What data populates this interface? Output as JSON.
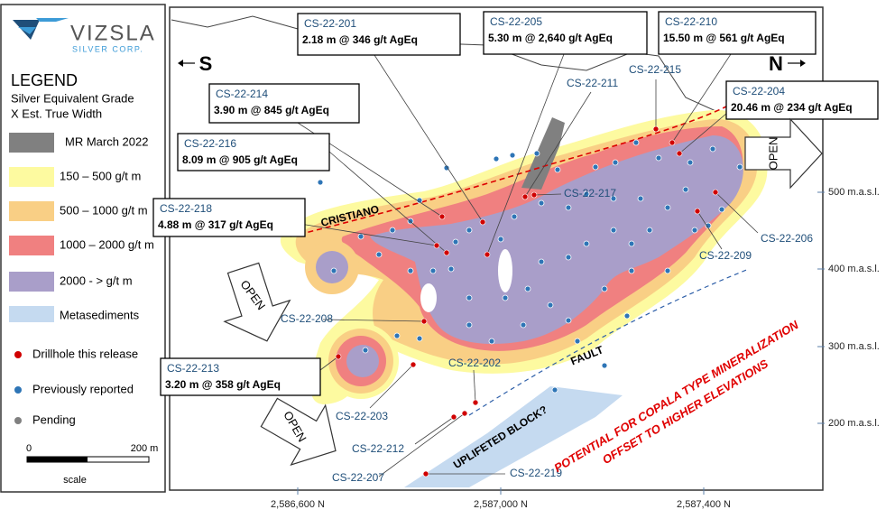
{
  "logo": {
    "name": "VIZSLA",
    "tagline": "SILVER CORP."
  },
  "legend": {
    "title": "LEGEND",
    "subtitle": [
      "Silver Equivalent Grade",
      "X Est. True Width"
    ],
    "zones": [
      "MR March 2022",
      "150 – 500 g/t m",
      "500 – 1000 g/t m",
      "1000 – 2000 g/t m",
      "2000 - > g/t m",
      "Metasediments"
    ],
    "symbols": [
      "Drillhole this release",
      "Previously reported",
      "Pending"
    ],
    "scale": {
      "start": "0",
      "end": "200 m",
      "label": "scale"
    }
  },
  "compass": {
    "south": "S",
    "north": "N"
  },
  "callouts": [
    {
      "hole": "CS-22-201",
      "intercept": "2.18 m @ 346 g/t AgEq"
    },
    {
      "hole": "CS-22-205",
      "intercept": "5.30 m @ 2,640 g/t AgEq"
    },
    {
      "hole": "CS-22-210",
      "intercept": "15.50 m @ 561 g/t AgEq"
    },
    {
      "hole": "CS-22-214",
      "intercept": "3.90 m @ 845 g/t AgEq"
    },
    {
      "hole": "CS-22-204",
      "intercept": "20.46 m @ 234 g/t AgEq"
    },
    {
      "hole": "CS-22-216",
      "intercept": "8.09 m @ 905 g/t AgEq"
    },
    {
      "hole": "CS-22-218",
      "intercept": "4.88 m @ 317 g/t AgEq"
    },
    {
      "hole": "CS-22-213",
      "intercept": "3.20 m @ 358 g/t AgEq"
    }
  ],
  "hole_labels": [
    "CS-22-215",
    "CS-22-211",
    "CS-22-217",
    "CS-22-206",
    "CS-22-209",
    "CS-22-208",
    "CS-22-202",
    "CS-22-203",
    "CS-22-212",
    "CS-22-207",
    "CS-22-219"
  ],
  "map_labels": {
    "cristiano": "CRISTIANO",
    "fault": "FAULT",
    "block": "UPLIFETED BLOCK?",
    "potential": [
      "POTENTIAL FOR COPALA TYPE MINERALIZATION",
      "OFFSET TO HIGHER ELEVATIONS"
    ]
  },
  "open_labels": [
    "OPEN",
    "OPEN",
    "OPEN"
  ],
  "elevations": [
    "500 m.a.s.l.",
    "400 m.a.s.l.",
    "300 m.a.s.l.",
    "200 m.a.s.l."
  ],
  "northings": [
    "2,586,600 N",
    "2,587,000 N",
    "2,587,400 N"
  ]
}
